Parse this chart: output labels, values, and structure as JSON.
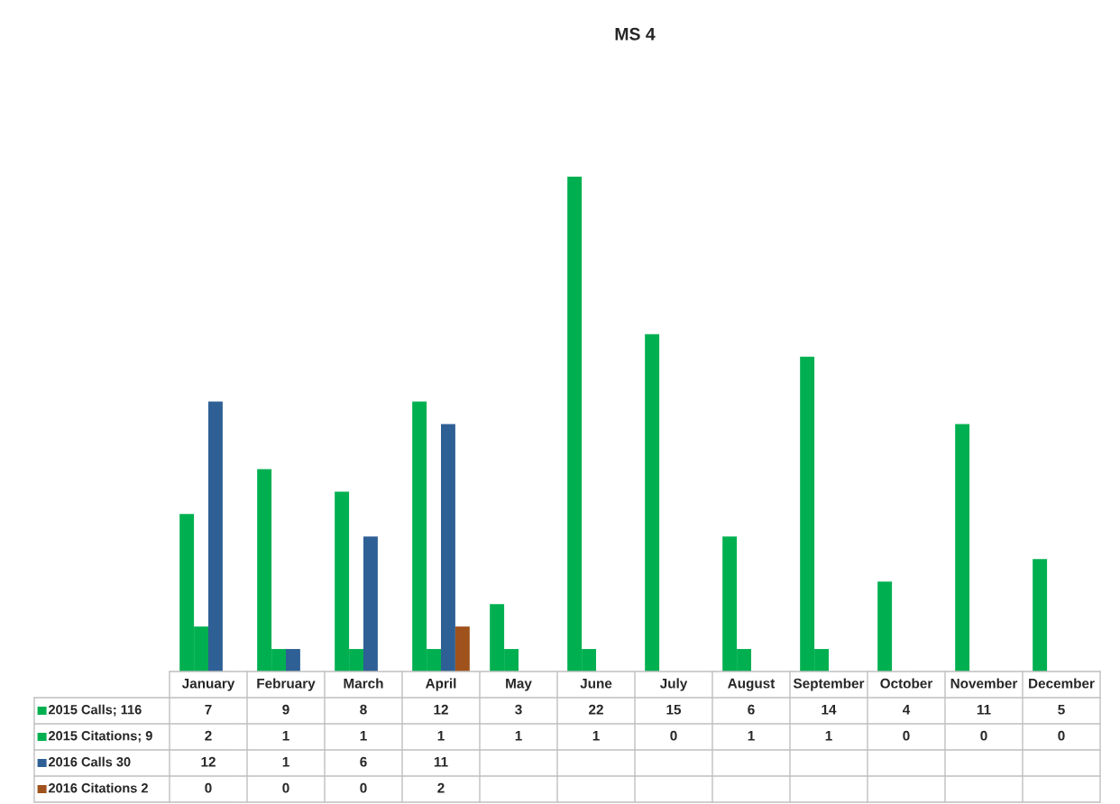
{
  "chart_data": {
    "type": "bar",
    "title": "MS 4",
    "categories": [
      "January",
      "February",
      "March",
      "April",
      "May",
      "June",
      "July",
      "August",
      "September",
      "October",
      "November",
      "December"
    ],
    "series": [
      {
        "name": "2015 Calls; 116",
        "color": "#00b050",
        "values": [
          7,
          9,
          8,
          12,
          3,
          22,
          15,
          6,
          14,
          4,
          11,
          5
        ]
      },
      {
        "name": "2015 Citations; 9",
        "color": "#00b050",
        "values": [
          2,
          1,
          1,
          1,
          1,
          1,
          0,
          1,
          1,
          0,
          0,
          0
        ]
      },
      {
        "name": "2016 Calls 30",
        "color": "#2e6095",
        "values": [
          12,
          1,
          6,
          11,
          null,
          null,
          null,
          null,
          null,
          null,
          null,
          null
        ]
      },
      {
        "name": "2016 Citations 2",
        "color": "#a0521c",
        "values": [
          0,
          0,
          0,
          2,
          null,
          null,
          null,
          null,
          null,
          null,
          null,
          null
        ]
      }
    ],
    "data_labels": true,
    "legend": "bottom left"
  }
}
